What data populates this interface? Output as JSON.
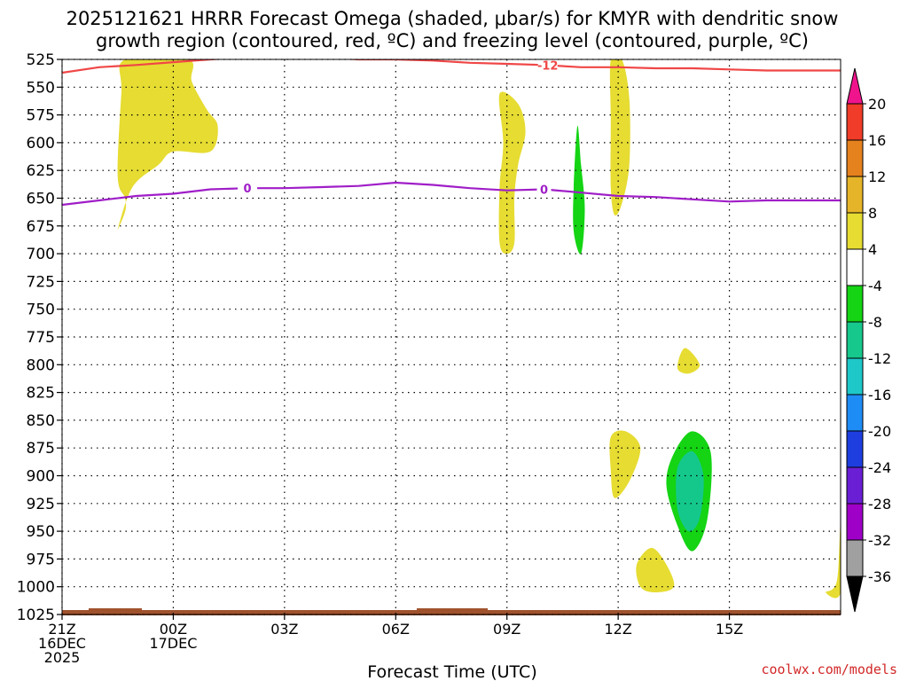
{
  "chart_data": {
    "type": "contour",
    "title_line1": "2025121621 HRRR Forecast Omega (shaded, μbar/s) for KMYR with dendritic snow",
    "title_line2": "growth region (contoured, red, ºC) and freezing level (contoured, purple, ºC)",
    "xlabel": "Forecast Time (UTC)",
    "credit": "coolwx.com/models",
    "x_hours": [
      -3,
      18
    ],
    "y_range_mb": [
      1025,
      525
    ],
    "y_ticks": [
      "525",
      "550",
      "575",
      "600",
      "625",
      "650",
      "675",
      "700",
      "725",
      "750",
      "775",
      "800",
      "825",
      "850",
      "875",
      "900",
      "925",
      "950",
      "975",
      "1000",
      "1025"
    ],
    "x_ticks": [
      {
        "hour": -3,
        "line1": "21Z",
        "line2": "16DEC",
        "line3": "2025"
      },
      {
        "hour": 0,
        "line1": "00Z",
        "line2": "17DEC",
        "line3": ""
      },
      {
        "hour": 3,
        "line1": "03Z",
        "line2": "",
        "line3": ""
      },
      {
        "hour": 6,
        "line1": "06Z",
        "line2": "",
        "line3": ""
      },
      {
        "hour": 9,
        "line1": "09Z",
        "line2": "",
        "line3": ""
      },
      {
        "hour": 12,
        "line1": "12Z",
        "line2": "",
        "line3": ""
      },
      {
        "hour": 15,
        "line1": "15Z",
        "line2": "",
        "line3": ""
      }
    ],
    "colorbar": {
      "colors": [
        "#000000",
        "#a0a0a0",
        "#9e00c8",
        "#6a1fd4",
        "#1e3ee0",
        "#1e8cf5",
        "#1ec8c8",
        "#16c88c",
        "#14d414",
        "#ffffff",
        "#e6dc32",
        "#e6b428",
        "#e6821e",
        "#f03c28",
        "#f0148c"
      ],
      "labels": [
        "-36",
        "-32",
        "-28",
        "-24",
        "-20",
        "-16",
        "-12",
        "-8",
        "-4",
        "4",
        "8",
        "12",
        "16",
        "20"
      ]
    },
    "dendritic_growth_line": {
      "label": "-12",
      "points": [
        [
          -3,
          537
        ],
        [
          -2,
          532
        ],
        [
          -1,
          530
        ],
        [
          0,
          527.5
        ],
        [
          1,
          525
        ],
        [
          2,
          523
        ],
        [
          3,
          522
        ],
        [
          4,
          523
        ],
        [
          5,
          525
        ],
        [
          6,
          525
        ],
        [
          7,
          526
        ],
        [
          8,
          528
        ],
        [
          9,
          529
        ],
        [
          10,
          530
        ],
        [
          11,
          532
        ],
        [
          12,
          532
        ],
        [
          13,
          533
        ],
        [
          14,
          533
        ],
        [
          15,
          534
        ],
        [
          16,
          535
        ],
        [
          17,
          535
        ],
        [
          18,
          535
        ]
      ]
    },
    "freezing_level_line": {
      "label": "0",
      "points": [
        [
          -3,
          656
        ],
        [
          -2,
          652
        ],
        [
          -1,
          648
        ],
        [
          0,
          646
        ],
        [
          1,
          642
        ],
        [
          2,
          641
        ],
        [
          3,
          641
        ],
        [
          4,
          640
        ],
        [
          5,
          639
        ],
        [
          6,
          636
        ],
        [
          7,
          638
        ],
        [
          8,
          641
        ],
        [
          9,
          643
        ],
        [
          10,
          642
        ],
        [
          11,
          645
        ],
        [
          12,
          648
        ],
        [
          13,
          649
        ],
        [
          14,
          651
        ],
        [
          15,
          653
        ],
        [
          16,
          652
        ],
        [
          17,
          652
        ],
        [
          18,
          652
        ]
      ]
    },
    "omega_regions": [
      {
        "category": "4",
        "color": "#e6dc32",
        "points": [
          [
            -1.3,
            525
          ],
          [
            0.4,
            525
          ],
          [
            0.5,
            545
          ],
          [
            0.9,
            570
          ],
          [
            1.2,
            585
          ],
          [
            1.0,
            608
          ],
          [
            0.0,
            608
          ],
          [
            -0.4,
            620
          ],
          [
            -1.1,
            640
          ],
          [
            -1.5,
            678
          ],
          [
            -1.3,
            662
          ],
          [
            -1.3,
            650
          ],
          [
            -1.5,
            630
          ],
          [
            -1.4,
            555
          ]
        ]
      },
      {
        "category": "4",
        "color": "#e6dc32",
        "points": [
          [
            8.8,
            556
          ],
          [
            9.3,
            565
          ],
          [
            9.5,
            590
          ],
          [
            9.3,
            620
          ],
          [
            9.2,
            650
          ],
          [
            9.2,
            690
          ],
          [
            9.0,
            700
          ],
          [
            8.8,
            690
          ],
          [
            8.8,
            640
          ],
          [
            8.9,
            600
          ]
        ]
      },
      {
        "category": "4",
        "color": "#e6dc32",
        "points": [
          [
            11.8,
            525
          ],
          [
            12.1,
            525
          ],
          [
            12.3,
            560
          ],
          [
            12.3,
            620
          ],
          [
            12.1,
            655
          ],
          [
            11.9,
            665
          ],
          [
            11.8,
            640
          ],
          [
            11.8,
            580
          ]
        ]
      },
      {
        "category": "4",
        "color": "#e6dc32",
        "points": [
          [
            13.8,
            785
          ],
          [
            14.2,
            800
          ],
          [
            13.9,
            808
          ],
          [
            13.6,
            803
          ]
        ]
      },
      {
        "category": "4",
        "color": "#e6dc32",
        "points": [
          [
            11.8,
            865
          ],
          [
            12.2,
            860
          ],
          [
            12.6,
            875
          ],
          [
            12.3,
            905
          ],
          [
            11.9,
            920
          ],
          [
            11.8,
            895
          ]
        ]
      },
      {
        "category": "4",
        "color": "#e6dc32",
        "points": [
          [
            12.5,
            980
          ],
          [
            12.9,
            965
          ],
          [
            13.3,
            980
          ],
          [
            13.5,
            1000
          ],
          [
            13.0,
            1005
          ],
          [
            12.6,
            1000
          ]
        ]
      },
      {
        "category": "4",
        "color": "#e6dc32",
        "points": [
          [
            17.6,
            1005
          ],
          [
            17.9,
            995
          ],
          [
            18.0,
            940
          ],
          [
            18.0,
            1005
          ]
        ]
      },
      {
        "category": "-4",
        "color": "#14d414",
        "points": [
          [
            10.9,
            585
          ],
          [
            11.0,
            620
          ],
          [
            11.1,
            660
          ],
          [
            11.0,
            700
          ],
          [
            10.8,
            680
          ],
          [
            10.8,
            640
          ]
        ]
      },
      {
        "category": "-4",
        "color": "#14d414",
        "points": [
          [
            13.5,
            880
          ],
          [
            14.0,
            860
          ],
          [
            14.5,
            880
          ],
          [
            14.4,
            940
          ],
          [
            14.0,
            968
          ],
          [
            13.6,
            945
          ],
          [
            13.3,
            908
          ]
        ]
      },
      {
        "category": "-8",
        "color": "#14c88c",
        "points": [
          [
            13.6,
            893
          ],
          [
            14.0,
            878
          ],
          [
            14.3,
            900
          ],
          [
            14.2,
            938
          ],
          [
            13.9,
            950
          ],
          [
            13.6,
            930
          ]
        ]
      }
    ]
  }
}
